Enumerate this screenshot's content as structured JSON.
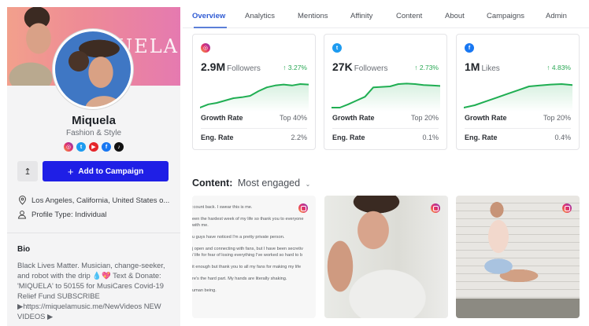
{
  "profile": {
    "name": "Miquela",
    "category": "Fashion & Style",
    "banner_text": "QUELA",
    "socials": [
      {
        "platform": "instagram",
        "icon": "instagram-icon",
        "glyph": "◎"
      },
      {
        "platform": "twitter",
        "icon": "twitter-icon",
        "glyph": "t"
      },
      {
        "platform": "youtube",
        "icon": "youtube-icon",
        "glyph": "▶"
      },
      {
        "platform": "facebook",
        "icon": "facebook-icon",
        "glyph": "f"
      },
      {
        "platform": "tiktok",
        "icon": "tiktok-icon",
        "glyph": "♪"
      }
    ],
    "share_icon": "↥",
    "add_button": {
      "icon": "+",
      "label": "Add to Campaign"
    },
    "location": "Los Angeles, California, United States o...",
    "profile_type": "Profile Type: Individual",
    "bio_title": "Bio",
    "bio": "Black Lives Matter. Musician, change-seeker, and robot with the drip 💧💖 Text & Donate: 'MIQUELA' to 50155 for MusiCares Covid-19 Relief Fund SUBSCRIBE ▶https://miquelamusic.me/NewVideos NEW VIDEOS ▶"
  },
  "tabs": [
    {
      "label": "Overview",
      "active": true
    },
    {
      "label": "Analytics",
      "active": false
    },
    {
      "label": "Mentions",
      "active": false
    },
    {
      "label": "Affinity",
      "active": false
    },
    {
      "label": "Content",
      "active": false
    },
    {
      "label": "About",
      "active": false
    },
    {
      "label": "Campaigns",
      "active": false
    },
    {
      "label": "Admin",
      "active": false
    }
  ],
  "stats": [
    {
      "platform": "instagram",
      "value": "2.9M",
      "unit": "Followers",
      "growth": "↑ 3.27%",
      "growth_rate_label": "Growth Rate",
      "growth_rate": "Top 40%",
      "eng_label": "Eng. Rate",
      "eng_rate": "2.2%",
      "trend": [
        5,
        12,
        15,
        20,
        25,
        27,
        30,
        40,
        48,
        52,
        54,
        52,
        55,
        54
      ]
    },
    {
      "platform": "twitter",
      "value": "27K",
      "unit": "Followers",
      "growth": "↑ 2.73%",
      "growth_rate_label": "Growth Rate",
      "growth_rate": "Top 20%",
      "eng_label": "Eng. Rate",
      "eng_rate": "0.1%",
      "trend": [
        5,
        5,
        12,
        20,
        28,
        48,
        49,
        50,
        55,
        56,
        55,
        53,
        52,
        51
      ]
    },
    {
      "platform": "facebook",
      "value": "1M",
      "unit": "Likes",
      "growth": "↑ 4.83%",
      "growth_rate_label": "Growth Rate",
      "growth_rate": "Top 20%",
      "eng_label": "Eng. Rate",
      "eng_rate": "0.4%",
      "trend": [
        5,
        10,
        18,
        26,
        34,
        42,
        50,
        52,
        54,
        55,
        53
      ]
    }
  ],
  "content": {
    "label": "Content:",
    "sort": "Most engaged",
    "posts": [
      {
        "type": "text",
        "platform": "instagram",
        "lines": [
          ":count back. I swear this is me.",
          "een the hardest week of my life so thank you to everyone",
          "  with me.",
          "u guys have noticed I'm a pretty private person.",
          "j open and connecting with fans, but I have been secretiv",
          "/ life for fear of losing everything I've worked so hard to b",
          " it enough but thank you to all my fans for making my life",
          "re's the hard part. My hands are literally shaking.",
          "uman being."
        ]
      },
      {
        "type": "photo",
        "platform": "instagram"
      },
      {
        "type": "photo",
        "platform": "instagram"
      }
    ]
  },
  "colors": {
    "accent_blue": "#1f1fe6",
    "tab_active": "#2f5bd3",
    "growth_green": "#2aa855",
    "spark_line": "#1fae52"
  }
}
